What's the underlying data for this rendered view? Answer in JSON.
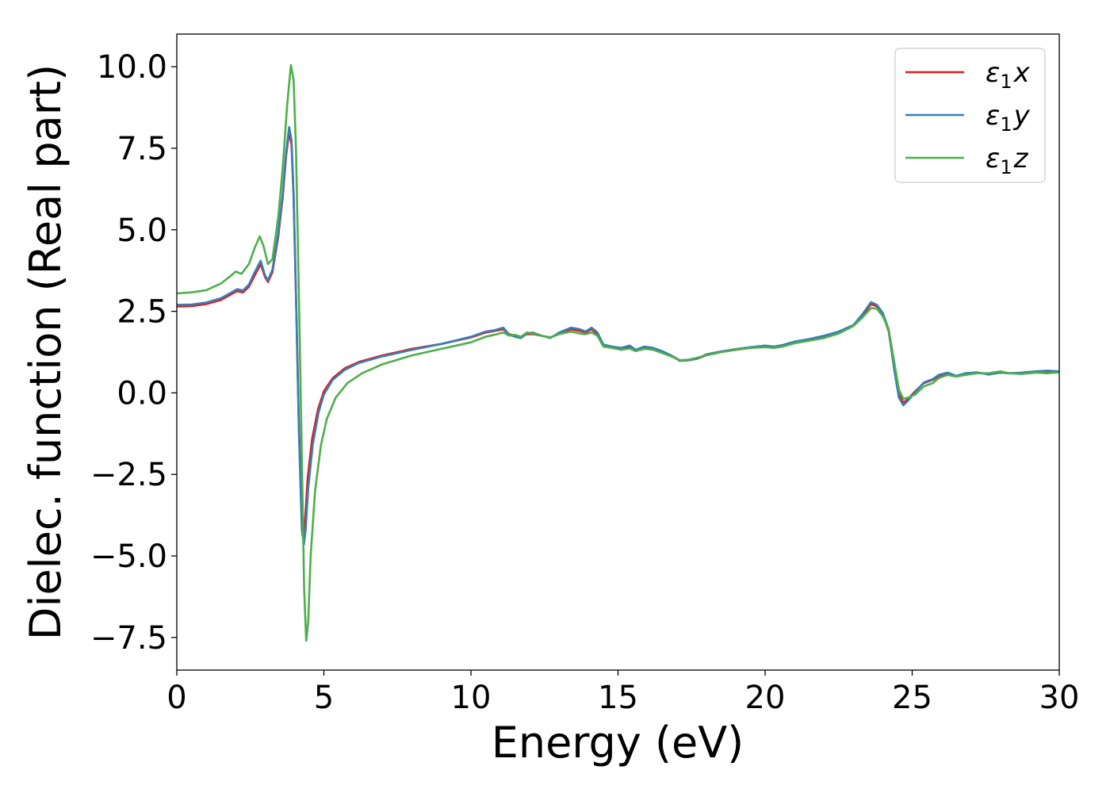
{
  "chart_data": {
    "type": "line",
    "xlabel": "Energy (eV)",
    "ylabel": "Dielec. function (Real part)",
    "xlim": [
      0,
      30
    ],
    "ylim": [
      -8.5,
      11
    ],
    "xticks": [
      0,
      5,
      10,
      15,
      20,
      25,
      30
    ],
    "xtick_labels": [
      "0",
      "5",
      "10",
      "15",
      "20",
      "25",
      "30"
    ],
    "yticks": [
      -7.5,
      -5.0,
      -2.5,
      0.0,
      2.5,
      5.0,
      7.5,
      10.0
    ],
    "ytick_labels": [
      "−7.5",
      "−5.0",
      "−2.5",
      "0.0",
      "2.5",
      "5.0",
      "7.5",
      "10.0"
    ],
    "grid": false,
    "legend_position": "top-right",
    "series": [
      {
        "name": "ε₁x",
        "legend_symbol": "ε",
        "legend_sub": "1",
        "legend_suffix": "x",
        "color": "#e41a1c",
        "points": [
          [
            0,
            2.65
          ],
          [
            0.5,
            2.66
          ],
          [
            1.0,
            2.72
          ],
          [
            1.5,
            2.85
          ],
          [
            1.9,
            3.05
          ],
          [
            2.05,
            3.12
          ],
          [
            2.25,
            3.08
          ],
          [
            2.45,
            3.25
          ],
          [
            2.65,
            3.6
          ],
          [
            2.85,
            3.95
          ],
          [
            3.0,
            3.55
          ],
          [
            3.1,
            3.4
          ],
          [
            3.25,
            3.7
          ],
          [
            3.45,
            4.8
          ],
          [
            3.6,
            6.0
          ],
          [
            3.72,
            7.3
          ],
          [
            3.82,
            8.0
          ],
          [
            3.9,
            7.6
          ],
          [
            3.97,
            6.0
          ],
          [
            4.05,
            3.0
          ],
          [
            4.15,
            -1.0
          ],
          [
            4.25,
            -3.8
          ],
          [
            4.3,
            -4.3
          ],
          [
            4.36,
            -3.9
          ],
          [
            4.45,
            -2.6
          ],
          [
            4.6,
            -1.4
          ],
          [
            4.8,
            -0.5
          ],
          [
            5.0,
            0.05
          ],
          [
            5.3,
            0.45
          ],
          [
            5.7,
            0.75
          ],
          [
            6.2,
            0.95
          ],
          [
            7.0,
            1.15
          ],
          [
            8.0,
            1.35
          ],
          [
            9.0,
            1.5
          ],
          [
            10.0,
            1.7
          ],
          [
            10.5,
            1.85
          ],
          [
            10.8,
            1.9
          ],
          [
            11.1,
            1.95
          ],
          [
            11.3,
            1.8
          ],
          [
            11.5,
            1.75
          ],
          [
            11.7,
            1.7
          ],
          [
            11.9,
            1.8
          ],
          [
            12.1,
            1.8
          ],
          [
            12.4,
            1.75
          ],
          [
            12.7,
            1.7
          ],
          [
            13.0,
            1.82
          ],
          [
            13.4,
            1.95
          ],
          [
            13.7,
            1.9
          ],
          [
            13.9,
            1.85
          ],
          [
            14.1,
            1.95
          ],
          [
            14.3,
            1.8
          ],
          [
            14.5,
            1.45
          ],
          [
            14.8,
            1.4
          ],
          [
            15.1,
            1.35
          ],
          [
            15.4,
            1.4
          ],
          [
            15.6,
            1.3
          ],
          [
            15.9,
            1.4
          ],
          [
            16.2,
            1.35
          ],
          [
            16.5,
            1.25
          ],
          [
            16.8,
            1.15
          ],
          [
            17.1,
            1.0
          ],
          [
            17.4,
            1.0
          ],
          [
            17.7,
            1.05
          ],
          [
            18.0,
            1.15
          ],
          [
            18.5,
            1.25
          ],
          [
            19.0,
            1.32
          ],
          [
            19.5,
            1.38
          ],
          [
            20.0,
            1.42
          ],
          [
            20.3,
            1.4
          ],
          [
            20.6,
            1.45
          ],
          [
            21.0,
            1.55
          ],
          [
            21.5,
            1.62
          ],
          [
            22.0,
            1.7
          ],
          [
            22.5,
            1.85
          ],
          [
            23.0,
            2.05
          ],
          [
            23.3,
            2.35
          ],
          [
            23.6,
            2.72
          ],
          [
            23.8,
            2.65
          ],
          [
            24.0,
            2.4
          ],
          [
            24.2,
            1.9
          ],
          [
            24.4,
            0.7
          ],
          [
            24.55,
            -0.05
          ],
          [
            24.7,
            -0.3
          ],
          [
            24.85,
            -0.2
          ],
          [
            25.1,
            0.05
          ],
          [
            25.4,
            0.3
          ],
          [
            25.7,
            0.4
          ],
          [
            25.9,
            0.5
          ],
          [
            26.2,
            0.58
          ],
          [
            26.5,
            0.52
          ],
          [
            26.8,
            0.58
          ],
          [
            27.2,
            0.62
          ],
          [
            27.6,
            0.58
          ],
          [
            28.0,
            0.62
          ],
          [
            28.3,
            0.6
          ],
          [
            28.7,
            0.6
          ],
          [
            29.2,
            0.65
          ],
          [
            29.6,
            0.65
          ],
          [
            30.0,
            0.65
          ]
        ]
      },
      {
        "name": "ε₁y",
        "legend_symbol": "ε",
        "legend_sub": "1",
        "legend_suffix": "y",
        "color": "#377eb8",
        "points": [
          [
            0,
            2.7
          ],
          [
            0.5,
            2.71
          ],
          [
            1.0,
            2.77
          ],
          [
            1.5,
            2.9
          ],
          [
            1.9,
            3.1
          ],
          [
            2.05,
            3.18
          ],
          [
            2.25,
            3.14
          ],
          [
            2.45,
            3.32
          ],
          [
            2.65,
            3.7
          ],
          [
            2.85,
            4.05
          ],
          [
            3.0,
            3.6
          ],
          [
            3.1,
            3.45
          ],
          [
            3.25,
            3.78
          ],
          [
            3.45,
            4.9
          ],
          [
            3.6,
            6.1
          ],
          [
            3.72,
            7.4
          ],
          [
            3.82,
            8.15
          ],
          [
            3.9,
            7.75
          ],
          [
            3.97,
            6.1
          ],
          [
            4.05,
            3.0
          ],
          [
            4.15,
            -1.2
          ],
          [
            4.25,
            -4.2
          ],
          [
            4.32,
            -4.65
          ],
          [
            4.38,
            -4.2
          ],
          [
            4.47,
            -2.9
          ],
          [
            4.62,
            -1.6
          ],
          [
            4.82,
            -0.6
          ],
          [
            5.0,
            -0.05
          ],
          [
            5.3,
            0.4
          ],
          [
            5.7,
            0.7
          ],
          [
            6.2,
            0.92
          ],
          [
            7.0,
            1.12
          ],
          [
            8.0,
            1.32
          ],
          [
            9.0,
            1.5
          ],
          [
            10.0,
            1.72
          ],
          [
            10.5,
            1.88
          ],
          [
            10.8,
            1.92
          ],
          [
            11.1,
            2.0
          ],
          [
            11.3,
            1.78
          ],
          [
            11.5,
            1.72
          ],
          [
            11.7,
            1.68
          ],
          [
            11.9,
            1.82
          ],
          [
            12.1,
            1.85
          ],
          [
            12.4,
            1.75
          ],
          [
            12.7,
            1.68
          ],
          [
            13.0,
            1.85
          ],
          [
            13.4,
            2.0
          ],
          [
            13.7,
            1.95
          ],
          [
            13.9,
            1.88
          ],
          [
            14.1,
            2.0
          ],
          [
            14.3,
            1.85
          ],
          [
            14.5,
            1.48
          ],
          [
            14.8,
            1.42
          ],
          [
            15.1,
            1.38
          ],
          [
            15.4,
            1.45
          ],
          [
            15.6,
            1.32
          ],
          [
            15.9,
            1.42
          ],
          [
            16.2,
            1.38
          ],
          [
            16.5,
            1.28
          ],
          [
            16.8,
            1.15
          ],
          [
            17.1,
            0.98
          ],
          [
            17.4,
            1.0
          ],
          [
            17.7,
            1.05
          ],
          [
            18.0,
            1.18
          ],
          [
            18.5,
            1.27
          ],
          [
            19.0,
            1.34
          ],
          [
            19.5,
            1.4
          ],
          [
            20.0,
            1.45
          ],
          [
            20.3,
            1.42
          ],
          [
            20.6,
            1.47
          ],
          [
            21.0,
            1.57
          ],
          [
            21.5,
            1.65
          ],
          [
            22.0,
            1.75
          ],
          [
            22.5,
            1.88
          ],
          [
            23.0,
            2.08
          ],
          [
            23.3,
            2.4
          ],
          [
            23.6,
            2.78
          ],
          [
            23.8,
            2.7
          ],
          [
            24.0,
            2.45
          ],
          [
            24.2,
            1.95
          ],
          [
            24.4,
            0.65
          ],
          [
            24.55,
            -0.15
          ],
          [
            24.7,
            -0.38
          ],
          [
            24.85,
            -0.25
          ],
          [
            25.1,
            0.02
          ],
          [
            25.4,
            0.32
          ],
          [
            25.7,
            0.42
          ],
          [
            25.9,
            0.55
          ],
          [
            26.2,
            0.62
          ],
          [
            26.5,
            0.52
          ],
          [
            26.8,
            0.6
          ],
          [
            27.2,
            0.63
          ],
          [
            27.6,
            0.56
          ],
          [
            28.0,
            0.62
          ],
          [
            28.3,
            0.6
          ],
          [
            28.7,
            0.62
          ],
          [
            29.2,
            0.66
          ],
          [
            29.6,
            0.68
          ],
          [
            30.0,
            0.66
          ]
        ]
      },
      {
        "name": "ε₁z",
        "legend_symbol": "ε",
        "legend_sub": "1",
        "legend_suffix": "z",
        "color": "#4daf4a",
        "points": [
          [
            0,
            3.05
          ],
          [
            0.5,
            3.08
          ],
          [
            1.0,
            3.15
          ],
          [
            1.5,
            3.35
          ],
          [
            1.85,
            3.6
          ],
          [
            2.0,
            3.72
          ],
          [
            2.2,
            3.65
          ],
          [
            2.45,
            3.95
          ],
          [
            2.65,
            4.45
          ],
          [
            2.82,
            4.8
          ],
          [
            2.95,
            4.5
          ],
          [
            3.1,
            3.95
          ],
          [
            3.25,
            4.1
          ],
          [
            3.45,
            5.4
          ],
          [
            3.6,
            6.9
          ],
          [
            3.75,
            8.8
          ],
          [
            3.88,
            10.05
          ],
          [
            3.97,
            9.6
          ],
          [
            4.05,
            7.5
          ],
          [
            4.15,
            3.0
          ],
          [
            4.25,
            -2.0
          ],
          [
            4.33,
            -6.0
          ],
          [
            4.4,
            -7.6
          ],
          [
            4.47,
            -7.0
          ],
          [
            4.55,
            -5.0
          ],
          [
            4.7,
            -3.0
          ],
          [
            4.9,
            -1.6
          ],
          [
            5.1,
            -0.8
          ],
          [
            5.4,
            -0.15
          ],
          [
            5.8,
            0.3
          ],
          [
            6.3,
            0.6
          ],
          [
            7.0,
            0.88
          ],
          [
            8.0,
            1.15
          ],
          [
            9.0,
            1.35
          ],
          [
            10.0,
            1.55
          ],
          [
            10.5,
            1.72
          ],
          [
            10.8,
            1.78
          ],
          [
            11.1,
            1.85
          ],
          [
            11.3,
            1.75
          ],
          [
            11.5,
            1.78
          ],
          [
            11.7,
            1.72
          ],
          [
            11.9,
            1.85
          ],
          [
            12.1,
            1.82
          ],
          [
            12.4,
            1.75
          ],
          [
            12.7,
            1.7
          ],
          [
            13.0,
            1.8
          ],
          [
            13.4,
            1.88
          ],
          [
            13.7,
            1.82
          ],
          [
            13.9,
            1.8
          ],
          [
            14.1,
            1.85
          ],
          [
            14.3,
            1.75
          ],
          [
            14.5,
            1.42
          ],
          [
            14.8,
            1.38
          ],
          [
            15.1,
            1.32
          ],
          [
            15.4,
            1.36
          ],
          [
            15.6,
            1.28
          ],
          [
            15.9,
            1.35
          ],
          [
            16.2,
            1.32
          ],
          [
            16.5,
            1.22
          ],
          [
            16.8,
            1.12
          ],
          [
            17.1,
            1.0
          ],
          [
            17.4,
            1.02
          ],
          [
            17.7,
            1.08
          ],
          [
            18.0,
            1.15
          ],
          [
            18.5,
            1.25
          ],
          [
            19.0,
            1.32
          ],
          [
            19.5,
            1.38
          ],
          [
            20.0,
            1.4
          ],
          [
            20.3,
            1.38
          ],
          [
            20.6,
            1.42
          ],
          [
            21.0,
            1.52
          ],
          [
            21.5,
            1.6
          ],
          [
            22.0,
            1.68
          ],
          [
            22.5,
            1.82
          ],
          [
            23.0,
            2.05
          ],
          [
            23.3,
            2.3
          ],
          [
            23.6,
            2.6
          ],
          [
            23.8,
            2.58
          ],
          [
            24.0,
            2.35
          ],
          [
            24.2,
            1.95
          ],
          [
            24.4,
            0.9
          ],
          [
            24.55,
            0.1
          ],
          [
            24.7,
            -0.18
          ],
          [
            24.85,
            -0.15
          ],
          [
            25.1,
            -0.05
          ],
          [
            25.4,
            0.2
          ],
          [
            25.7,
            0.3
          ],
          [
            25.9,
            0.45
          ],
          [
            26.2,
            0.55
          ],
          [
            26.5,
            0.5
          ],
          [
            26.8,
            0.55
          ],
          [
            27.2,
            0.6
          ],
          [
            27.6,
            0.6
          ],
          [
            28.0,
            0.66
          ],
          [
            28.3,
            0.6
          ],
          [
            28.7,
            0.58
          ],
          [
            29.2,
            0.62
          ],
          [
            29.6,
            0.6
          ],
          [
            30.0,
            0.63
          ]
        ]
      }
    ]
  }
}
